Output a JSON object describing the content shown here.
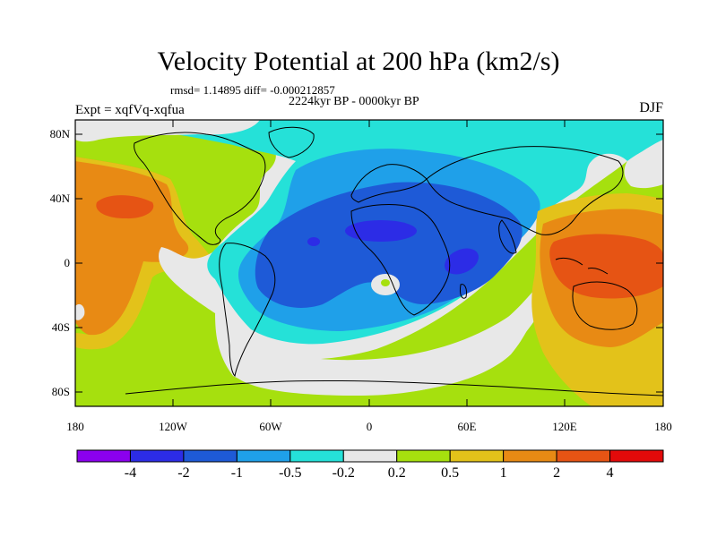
{
  "title": "Velocity Potential at 200 hPa (km2/s)",
  "stats": "rmsd= 1.14895 diff= -0.000212857",
  "period": "2224kyr BP - 0000kyr BP",
  "experiment": "Expt = xqfVq-xqfua",
  "season": "DJF",
  "lat_ticks": [
    "80N",
    "40N",
    "0",
    "40S",
    "80S"
  ],
  "lon_ticks": [
    "180",
    "120W",
    "60W",
    "0",
    "60E",
    "120E",
    "180"
  ],
  "colorbar": {
    "colors": [
      "#8b00ee",
      "#2c2ce6",
      "#1e5ad7",
      "#1fa0e9",
      "#25e1d8",
      "#e8e8e8",
      "#a6e00e",
      "#e3c21a",
      "#e88a14",
      "#e65414",
      "#e30a0a"
    ],
    "labels": [
      "-4",
      "-2",
      "-1",
      "-0.5",
      "-0.2",
      "0.2",
      "0.5",
      "1",
      "2",
      "4"
    ]
  }
}
